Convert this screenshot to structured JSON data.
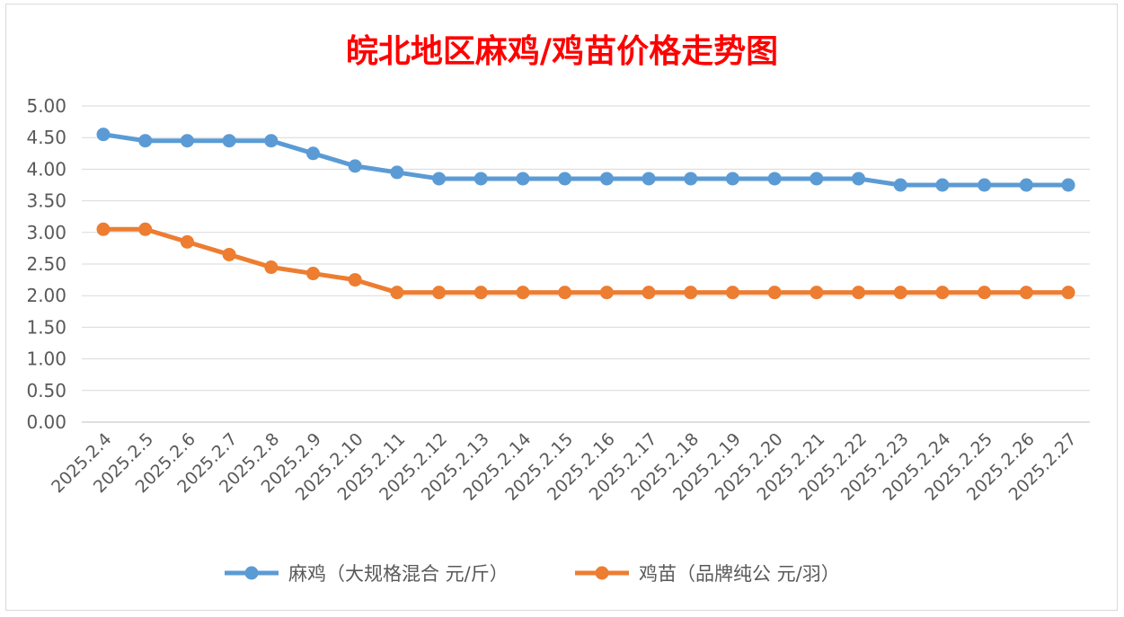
{
  "chart_data": {
    "type": "line",
    "title": "皖北地区麻鸡/鸡苗价格走势图",
    "xlabel": "",
    "ylabel": "",
    "ylim": [
      0,
      5
    ],
    "ytick_step": 0.5,
    "grid": true,
    "legend_position": "bottom",
    "categories": [
      "2025.2.4",
      "2025.2.5",
      "2025.2.6",
      "2025.2.7",
      "2025.2.8",
      "2025.2.9",
      "2025.2.10",
      "2025.2.11",
      "2025.2.12",
      "2025.2.13",
      "2025.2.14",
      "2025.2.15",
      "2025.2.16",
      "2025.2.17",
      "2025.2.18",
      "2025.2.19",
      "2025.2.20",
      "2025.2.21",
      "2025.2.22",
      "2025.2.23",
      "2025.2.24",
      "2025.2.25",
      "2025.2.26",
      "2025.2.27"
    ],
    "series": [
      {
        "name": "麻鸡（大规格混合 元/斤）",
        "color": "#5b9bd5",
        "values": [
          4.55,
          4.45,
          4.45,
          4.45,
          4.45,
          4.25,
          4.05,
          3.95,
          3.85,
          3.85,
          3.85,
          3.85,
          3.85,
          3.85,
          3.85,
          3.85,
          3.85,
          3.85,
          3.85,
          3.75,
          3.75,
          3.75,
          3.75,
          3.75
        ]
      },
      {
        "name": "鸡苗（品牌纯公 元/羽）",
        "color": "#ed7d31",
        "values": [
          3.05,
          3.05,
          2.85,
          2.65,
          2.45,
          2.35,
          2.25,
          2.05,
          2.05,
          2.05,
          2.05,
          2.05,
          2.05,
          2.05,
          2.05,
          2.05,
          2.05,
          2.05,
          2.05,
          2.05,
          2.05,
          2.05,
          2.05,
          2.05
        ]
      }
    ]
  }
}
